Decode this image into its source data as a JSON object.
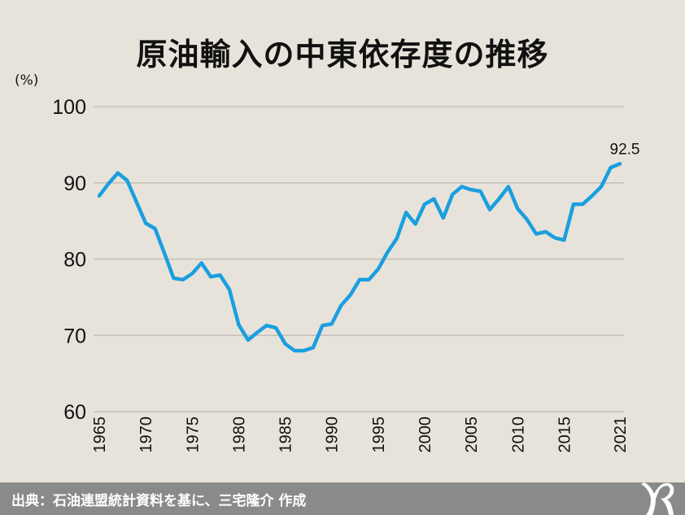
{
  "chart_data": {
    "type": "line",
    "title": "原油輸入の中東依存度の推移",
    "ylabel": "(%)",
    "xlabel": "",
    "ylim": [
      60,
      100
    ],
    "yticks": [
      60,
      70,
      80,
      90,
      100
    ],
    "xticks": [
      1965,
      1970,
      1975,
      1980,
      1985,
      1990,
      1995,
      2000,
      2005,
      2010,
      2015,
      2021
    ],
    "xlim": [
      1965,
      2021
    ],
    "grid": true,
    "line_color": "#1a9fe0",
    "annotation": {
      "x": 2021,
      "text": "92.5"
    },
    "x": [
      1965,
      1966,
      1967,
      1968,
      1969,
      1970,
      1971,
      1972,
      1973,
      1974,
      1975,
      1976,
      1977,
      1978,
      1979,
      1980,
      1981,
      1982,
      1983,
      1984,
      1985,
      1986,
      1987,
      1988,
      1989,
      1990,
      1991,
      1992,
      1993,
      1994,
      1995,
      1996,
      1997,
      1998,
      1999,
      2000,
      2001,
      2002,
      2003,
      2004,
      2005,
      2006,
      2007,
      2008,
      2009,
      2010,
      2011,
      2012,
      2013,
      2014,
      2015,
      2016,
      2017,
      2018,
      2019,
      2020,
      2021
    ],
    "values": [
      88.3,
      89.9,
      91.3,
      90.3,
      87.5,
      84.7,
      84.0,
      80.8,
      77.5,
      77.3,
      78.1,
      79.5,
      77.7,
      77.9,
      76.0,
      71.4,
      69.4,
      70.4,
      71.3,
      71.0,
      68.9,
      68.0,
      68.0,
      68.4,
      71.3,
      71.5,
      73.9,
      75.3,
      77.3,
      77.3,
      78.7,
      80.9,
      82.7,
      86.1,
      84.6,
      87.2,
      87.9,
      85.4,
      88.5,
      89.5,
      89.1,
      88.9,
      86.5,
      87.9,
      89.5,
      86.6,
      85.2,
      83.3,
      83.6,
      82.8,
      82.5,
      87.2,
      87.2,
      88.3,
      89.5,
      92.0,
      92.5
    ]
  },
  "footer": {
    "source": "出典：石油連盟統計資料を基に、三宅隆介 作成",
    "logo_text": "MR"
  }
}
